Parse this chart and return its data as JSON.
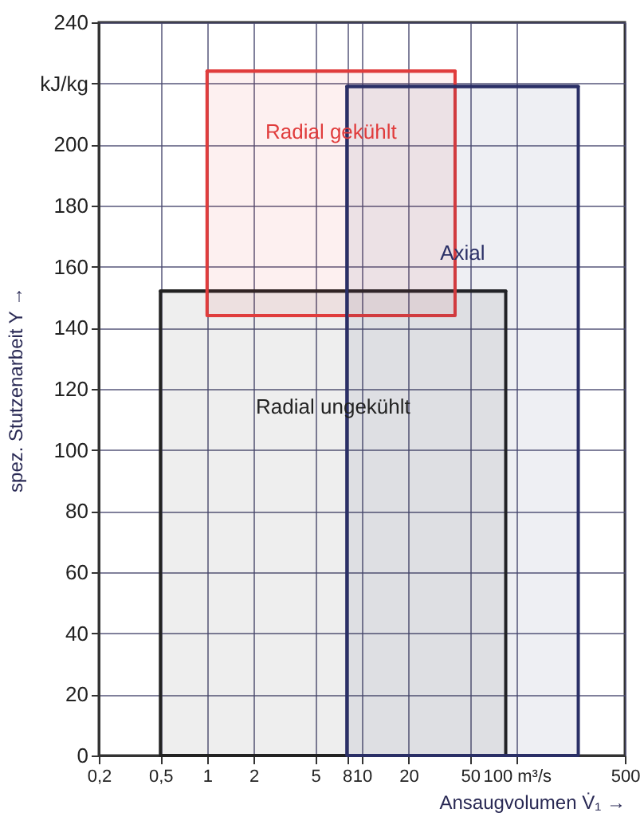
{
  "chart_data": {
    "type": "line",
    "line_style": "solid",
    "xlabel": "Ansaugvolumen V̇₁ →",
    "ylabel": "spez. Stutzenarbeit Y →",
    "log": "x",
    "grid": true,
    "xlim": [
      0.2,
      500
    ],
    "xticks": [
      {
        "value": 0.2,
        "label": "0,2"
      },
      {
        "value": 0.5,
        "label": "0,5"
      },
      1,
      2,
      5,
      8,
      10,
      20,
      50,
      {
        "value": 100,
        "label": "100 m³/s"
      },
      500
    ],
    "ylim": [
      0,
      240
    ],
    "yticks": [
      0,
      20,
      40,
      60,
      80,
      100,
      120,
      140,
      160,
      180,
      200,
      {
        "value": 220,
        "label": "kJ/kg"
      },
      240
    ],
    "series": [
      {
        "name": "Radial ungekühlt",
        "color": "#222222",
        "x": [
          0.5,
          85
        ],
        "values": [
          152,
          152
        ],
        "lower": [
          0,
          0
        ],
        "upper": [
          152,
          152
        ]
      },
      {
        "name": "Radial gekühlt",
        "color": "#e03c3c",
        "x": [
          1,
          40
        ],
        "values": [
          224,
          224
        ],
        "lower": [
          144,
          144
        ],
        "upper": [
          224,
          224
        ]
      },
      {
        "name": "Axial",
        "color": "#2a2f66",
        "x": [
          8,
          250
        ],
        "values": [
          219,
          219
        ],
        "lower": [
          0,
          0
        ],
        "upper": [
          219,
          219
        ]
      }
    ]
  }
}
